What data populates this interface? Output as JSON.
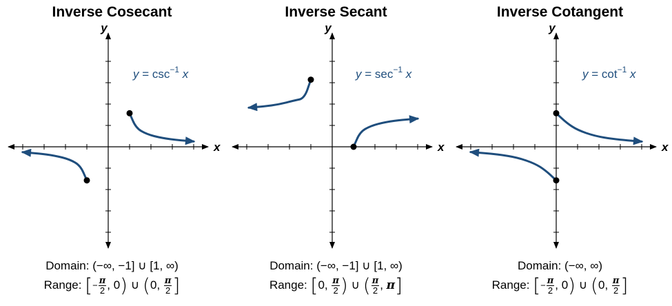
{
  "chart_data": [
    {
      "type": "line",
      "title": "Inverse Cosecant",
      "equation": {
        "lhs": "y",
        "fn": "csc",
        "exp": "−1",
        "arg": "x"
      },
      "xlabel": "x",
      "ylabel": "y",
      "grid": false,
      "xlim": [
        -4.5,
        4.5
      ],
      "ylim": [
        -4.6,
        4.6
      ],
      "series": [
        {
          "x": [
            -1,
            -1.3,
            -1.8,
            -2.5,
            -3.3,
            -4.0
          ],
          "y": [
            -1.5708,
            -0.879,
            -0.59,
            -0.412,
            -0.307,
            -0.253
          ]
        },
        {
          "x": [
            1,
            1.3,
            1.8,
            2.5,
            3.3,
            4.0
          ],
          "y": [
            1.5708,
            0.879,
            0.59,
            0.412,
            0.307,
            0.253
          ]
        }
      ],
      "endpoints": [
        {
          "x": -1,
          "y": -1.5708
        },
        {
          "x": 1,
          "y": 1.5708
        }
      ],
      "domain": {
        "label": "Domain:",
        "text": "(−∞, −1] ∪ [1, ∞)"
      },
      "range": {
        "label": "Range:",
        "a": "−",
        "num": "π",
        "den": "2",
        "zero": "0",
        "union": "∪"
      }
    },
    {
      "type": "line",
      "title": "Inverse Secant",
      "equation": {
        "lhs": "y",
        "fn": "sec",
        "exp": "−1",
        "arg": "x"
      },
      "xlabel": "x",
      "ylabel": "y",
      "grid": false,
      "xlim": [
        -4.5,
        4.5
      ],
      "ylim": [
        -4.6,
        4.6
      ],
      "series": [
        {
          "x": [
            -1,
            -1.3,
            -1.8,
            -2.5,
            -3.2,
            -3.9
          ],
          "y": [
            3.1416,
            2.263,
            2.16,
            1.983,
            1.889,
            1.831
          ]
        },
        {
          "x": [
            1,
            1.3,
            1.8,
            2.5,
            3.3,
            4.0
          ],
          "y": [
            0,
            0.692,
            0.981,
            1.159,
            1.264,
            1.318
          ]
        }
      ],
      "endpoints": [
        {
          "x": -1,
          "y": 3.1416
        },
        {
          "x": 1,
          "y": 0
        }
      ],
      "domain": {
        "label": "Domain:",
        "text": "(−∞, −1] ∪ [1, ∞)"
      },
      "range": {
        "label": "Range:",
        "zero": "0",
        "num": "π",
        "den": "2",
        "union": "∪",
        "pi": "π"
      }
    },
    {
      "type": "line",
      "title": "Inverse Cotangent",
      "equation": {
        "lhs": "y",
        "fn": "cot",
        "exp": "−1",
        "arg": "x"
      },
      "xlabel": "x",
      "ylabel": "y",
      "grid": false,
      "xlim": [
        -4.5,
        4.5
      ],
      "ylim": [
        -4.6,
        4.6
      ],
      "series": [
        {
          "x": [
            0,
            0.5,
            1.0,
            1.8,
            2.7,
            4.0
          ],
          "y": [
            1.5708,
            1.107,
            0.785,
            0.507,
            0.355,
            0.245
          ]
        },
        {
          "x": [
            0,
            -0.5,
            -1.0,
            -1.8,
            -2.7,
            -4.0
          ],
          "y": [
            -1.5708,
            -1.107,
            -0.785,
            -0.507,
            -0.355,
            -0.245
          ]
        }
      ],
      "endpoints": [
        {
          "x": 0,
          "y": 1.5708
        },
        {
          "x": 0,
          "y": -1.5708
        }
      ],
      "domain": {
        "label": "Domain:",
        "text": "(−∞, ∞)"
      },
      "range": {
        "label": "Range:",
        "a": "−",
        "num": "π",
        "den": "2",
        "zero": "0",
        "union": "∪"
      }
    }
  ],
  "colors": {
    "curve": "#1f4e7d",
    "axis": "#000000",
    "equation": "#1f4e7d"
  }
}
